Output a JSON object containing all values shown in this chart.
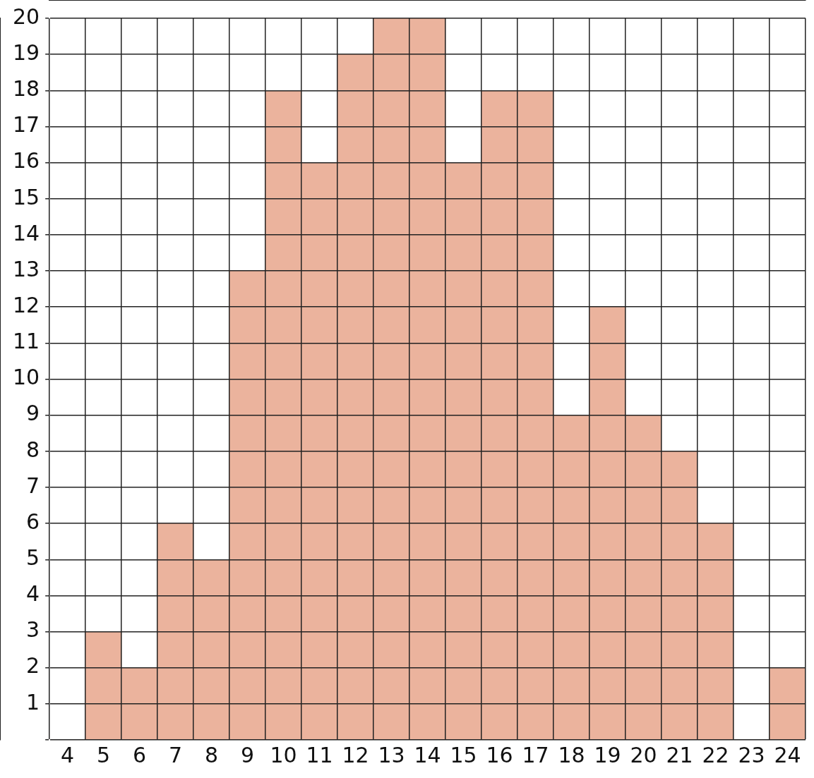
{
  "chart_data": {
    "type": "bar",
    "categories": [
      "4",
      "5",
      "6",
      "7",
      "8",
      "9",
      "10",
      "11",
      "12",
      "13",
      "14",
      "15",
      "16",
      "17",
      "18",
      "19",
      "20",
      "21",
      "22",
      "23",
      "24"
    ],
    "values": [
      0,
      3,
      2,
      6,
      5,
      13,
      18,
      16,
      19,
      20,
      20,
      16,
      18,
      18,
      9,
      12,
      9,
      8,
      6,
      0,
      2
    ],
    "color": "#ebb39d",
    "ylim": [
      0,
      20
    ],
    "yticks": [
      {
        "value": 0,
        "label": null
      },
      1,
      2,
      3,
      4,
      5,
      6,
      7,
      8,
      9,
      10,
      11,
      12,
      13,
      14,
      15,
      16,
      17,
      18,
      19,
      20
    ],
    "grid": true,
    "legend": false
  }
}
